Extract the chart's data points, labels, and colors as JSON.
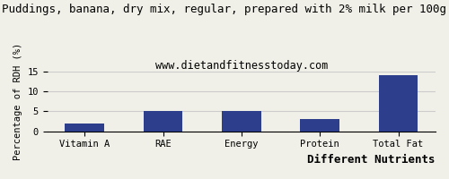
{
  "title": "Puddings, banana, dry mix, regular, prepared with 2% milk per 100g",
  "subtitle": "www.dietandfitnesstoday.com",
  "categories": [
    "Vitamin A",
    "RAE",
    "Energy",
    "Protein",
    "Total Fat"
  ],
  "values": [
    2.0,
    5.0,
    5.0,
    3.0,
    14.0
  ],
  "bar_color": "#2d3e8c",
  "xlabel": "Different Nutrients",
  "ylabel": "Percentage of RDH (%)",
  "ylim": [
    0,
    15
  ],
  "yticks": [
    0,
    5,
    10,
    15
  ],
  "background_color": "#f0f0e8",
  "title_fontsize": 9,
  "subtitle_fontsize": 8.5,
  "xlabel_fontsize": 9,
  "ylabel_fontsize": 7.5,
  "tick_fontsize": 7.5,
  "grid_color": "#cccccc"
}
